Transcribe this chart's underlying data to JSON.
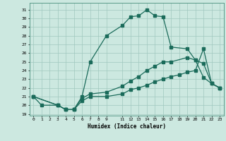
{
  "bg_color": "#cce8e0",
  "line_color": "#1a6b5a",
  "grid_color": "#a0c8be",
  "xlabel": "Humidex (Indice chaleur)",
  "xlim": [
    -0.5,
    23.5
  ],
  "ylim": [
    18.8,
    31.8
  ],
  "yticks": [
    19,
    20,
    21,
    22,
    23,
    24,
    25,
    26,
    27,
    28,
    29,
    30,
    31
  ],
  "xticks": [
    0,
    1,
    2,
    3,
    4,
    5,
    6,
    7,
    8,
    9,
    11,
    12,
    13,
    14,
    15,
    16,
    17,
    18,
    19,
    20,
    21,
    22,
    23
  ],
  "line1_x": [
    0,
    1,
    3,
    4,
    5,
    6,
    7,
    9,
    11,
    12,
    13,
    14,
    15,
    16,
    17,
    19,
    20,
    21,
    22,
    23
  ],
  "line1_y": [
    21,
    20,
    20,
    19.5,
    19.5,
    21.0,
    25.0,
    28.0,
    29.2,
    30.2,
    30.3,
    31.0,
    30.3,
    30.2,
    26.7,
    26.5,
    25.2,
    24.8,
    22.5,
    22.0
  ],
  "line2_x": [
    0,
    3,
    4,
    5,
    6,
    7,
    9,
    11,
    12,
    13,
    14,
    15,
    16,
    17,
    19,
    20,
    21,
    22,
    23
  ],
  "line2_y": [
    21,
    20,
    19.5,
    19.5,
    20.8,
    21.3,
    21.5,
    22.2,
    22.8,
    23.3,
    24.0,
    24.5,
    25.0,
    25.0,
    25.5,
    25.2,
    23.2,
    22.5,
    22.0
  ],
  "line3_x": [
    0,
    3,
    4,
    5,
    6,
    7,
    9,
    11,
    12,
    13,
    14,
    15,
    16,
    17,
    18,
    19,
    20,
    21,
    22,
    23
  ],
  "line3_y": [
    21,
    20,
    19.5,
    19.5,
    20.5,
    21.0,
    21.0,
    21.3,
    21.8,
    22.0,
    22.3,
    22.7,
    23.0,
    23.3,
    23.5,
    23.8,
    24.0,
    26.5,
    22.5,
    22.0
  ]
}
